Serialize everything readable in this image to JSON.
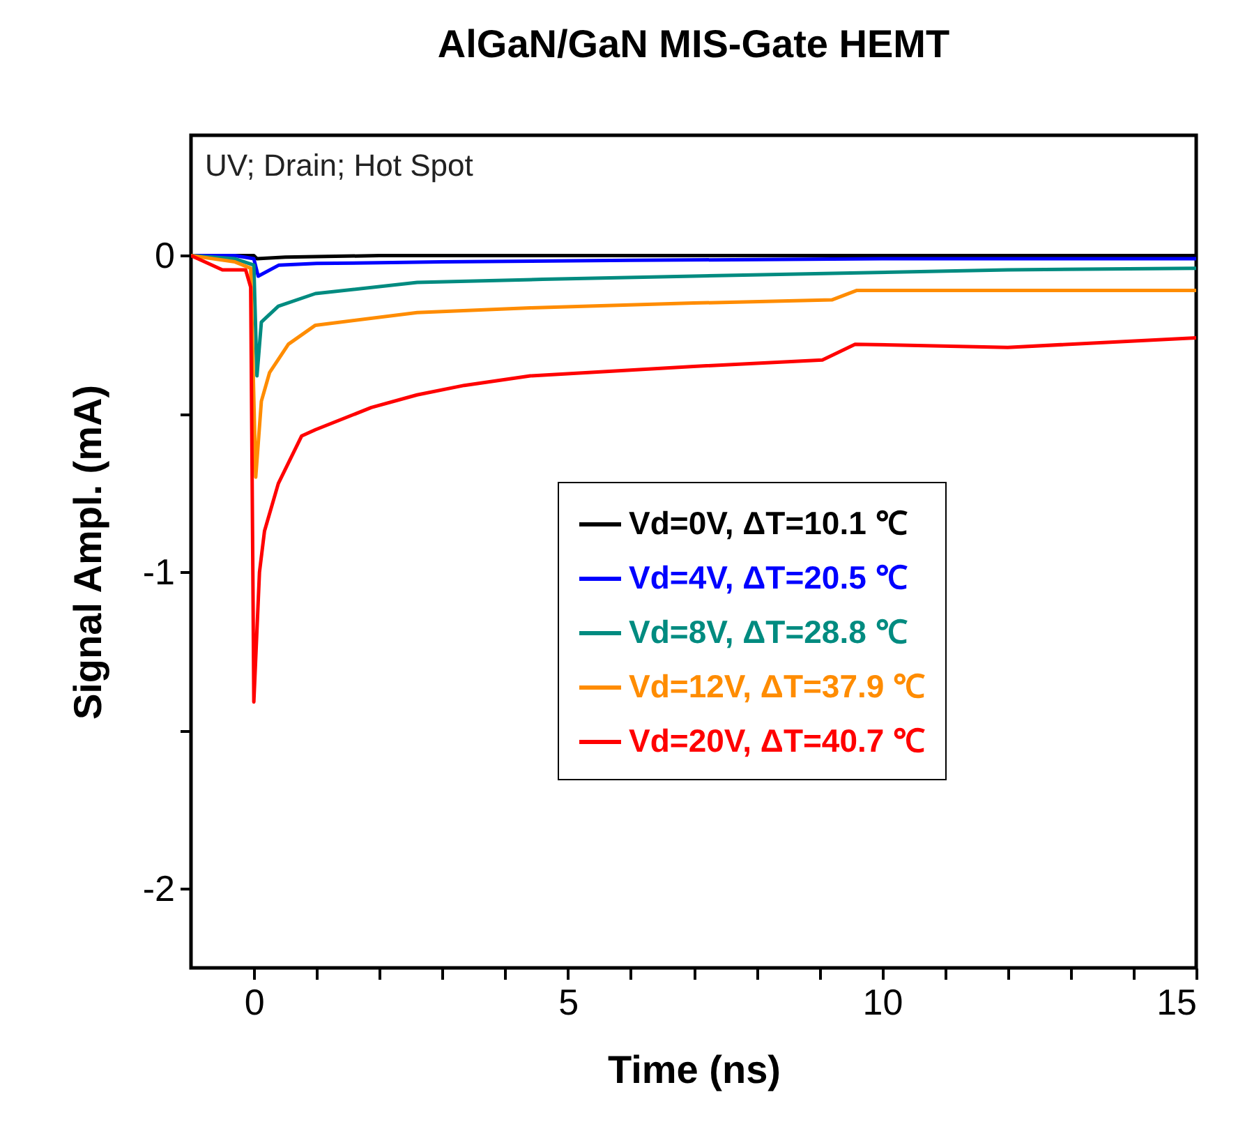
{
  "chart_data": {
    "type": "line",
    "title": "AlGaN/GaN MIS-Gate HEMT",
    "xlabel": "Time (ns)",
    "ylabel": "Signal Ampl. (mA)",
    "annotations": [
      "UV; Drain; Hot Spot"
    ],
    "xlim": [
      -1,
      15
    ],
    "ylim": [
      -2.25,
      0.38
    ],
    "xticks": [
      0,
      {
        "value": 1,
        "label": null
      },
      {
        "value": 2,
        "label": null
      },
      {
        "value": 3,
        "label": null
      },
      {
        "value": 4,
        "label": null
      },
      5,
      {
        "value": 6,
        "label": null
      },
      {
        "value": 7,
        "label": null
      },
      {
        "value": 8,
        "label": null
      },
      {
        "value": 9,
        "label": null
      },
      10,
      {
        "value": 11,
        "label": null
      },
      {
        "value": 12,
        "label": null
      },
      {
        "value": 13,
        "label": null
      },
      {
        "value": 14,
        "label": null
      },
      15
    ],
    "yticks": [
      -2,
      {
        "value": -1.5,
        "label": null
      },
      -1,
      {
        "value": -0.5,
        "label": null
      },
      0
    ],
    "legend": "right",
    "series": [
      {
        "name": "Vd=0V, ΔT=10.1 ℃",
        "color": "#000000",
        "x": [
          -1,
          -0.5,
          0,
          0.05,
          0.5,
          2,
          5,
          9,
          12,
          15
        ],
        "values": [
          0,
          0,
          0,
          -0.01,
          -0.005,
          0,
          0,
          0,
          0,
          0
        ]
      },
      {
        "name": "Vd=4V, ΔT=20.5 ℃",
        "color": "#0000ff",
        "x": [
          -1,
          -0.3,
          0,
          0.07,
          0.4,
          1,
          3,
          6,
          10,
          15
        ],
        "values": [
          0,
          0,
          -0.01,
          -0.065,
          -0.03,
          -0.025,
          -0.02,
          -0.015,
          -0.01,
          -0.01
        ]
      },
      {
        "name": "Vd=8V, ΔT=28.8 ℃",
        "color": "#008b80",
        "x": [
          -1,
          -0.3,
          0,
          0.05,
          0.12,
          0.39,
          0.98,
          2.6,
          4.6,
          7,
          9.5,
          12,
          15
        ],
        "values": [
          0,
          -0.01,
          -0.03,
          -0.38,
          -0.21,
          -0.16,
          -0.12,
          -0.085,
          -0.075,
          -0.065,
          -0.055,
          -0.045,
          -0.04
        ]
      },
      {
        "name": "Vd=12V, ΔT=37.9 ℃",
        "color": "#ff8c00",
        "x": [
          -1,
          -0.3,
          -0.05,
          0.03,
          0.12,
          0.25,
          0.55,
          0.98,
          2.6,
          4.4,
          7,
          9.2,
          9.6,
          12,
          15
        ],
        "values": [
          0,
          -0.02,
          -0.04,
          -0.7,
          -0.46,
          -0.37,
          -0.28,
          -0.22,
          -0.18,
          -0.165,
          -0.15,
          -0.14,
          -0.11,
          -0.11,
          -0.11
        ]
      },
      {
        "name": "Vd=20V, ΔT=40.7 ℃",
        "color": "#ff0000",
        "x": [
          -1,
          -0.5,
          -0.13,
          -0.05,
          0.0,
          0.09,
          0.17,
          0.39,
          0.76,
          0.98,
          1.87,
          2.6,
          3.35,
          4.4,
          7,
          9.05,
          9.57,
          12,
          15
        ],
        "values": [
          0,
          -0.045,
          -0.045,
          -0.1,
          -1.41,
          -1.0,
          -0.87,
          -0.72,
          -0.57,
          -0.55,
          -0.48,
          -0.44,
          -0.41,
          -0.38,
          -0.35,
          -0.33,
          -0.28,
          -0.29,
          -0.26
        ]
      }
    ]
  }
}
